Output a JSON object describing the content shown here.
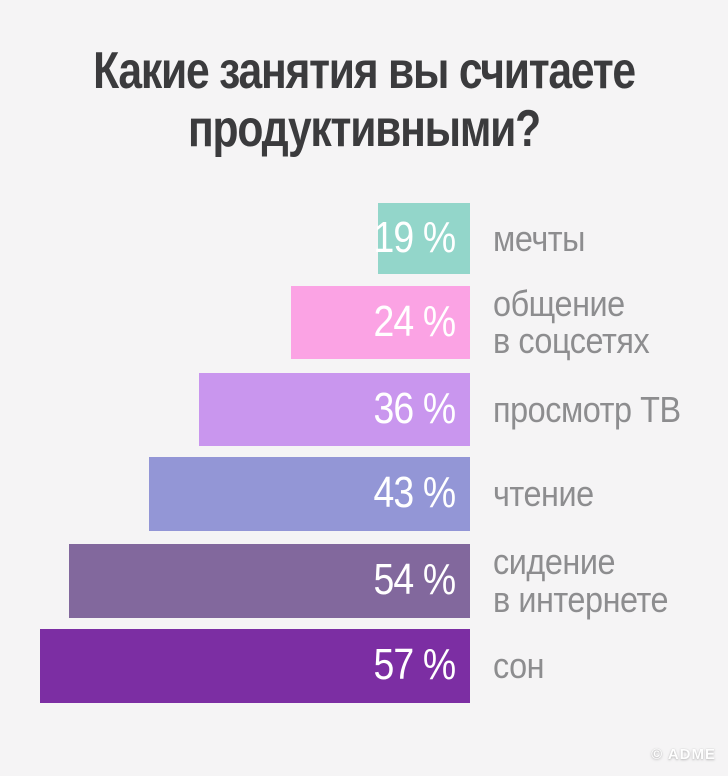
{
  "title": {
    "line1": "Какие занятия вы считаете",
    "line2": "продуктивными?"
  },
  "watermark": "© ADME",
  "colors": {
    "background": "#f5f4f5",
    "title_text": "#3b3b3d",
    "label_text": "#8d8d8f",
    "value_text": "#ffffff"
  },
  "chart_data": {
    "type": "bar",
    "orientation": "horizontal, right-aligned bars",
    "title": "Какие занятия вы считаете продуктивными?",
    "unit": "%",
    "legend": "none",
    "axes": "none (values labeled on bars)",
    "categories": [
      "мечты",
      "общение\nв соцсетях",
      "просмотр ТВ",
      "чтение",
      "сидение\nв интернете",
      "сон"
    ],
    "values": [
      19,
      24,
      36,
      43,
      54,
      57
    ],
    "items": [
      {
        "label": "мечты",
        "value": 19,
        "display": "19 %",
        "color": "#93d6ca"
      },
      {
        "label": "общение\nв соцсетях",
        "value": 24,
        "display": "24 %",
        "color": "#fba3e4"
      },
      {
        "label": "просмотр ТВ",
        "value": 36,
        "display": "36 %",
        "color": "#c996ee"
      },
      {
        "label": "чтение",
        "value": 43,
        "display": "43 %",
        "color": "#9396d6"
      },
      {
        "label": "сидение\nв интернете",
        "value": 54,
        "display": "54 %",
        "color": "#82689d"
      },
      {
        "label": "сон",
        "value": 57,
        "display": "57 %",
        "color": "#7c2ea3"
      }
    ]
  }
}
